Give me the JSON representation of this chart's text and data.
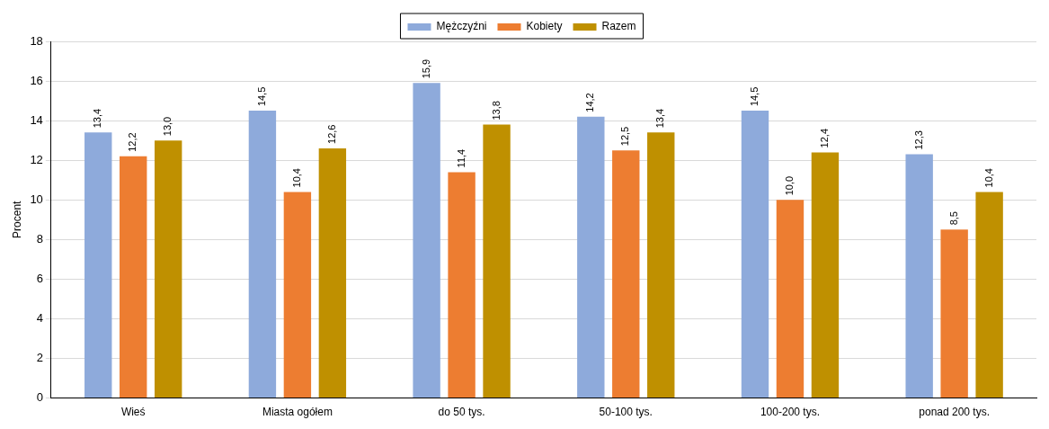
{
  "chart_data": {
    "type": "bar",
    "ylabel": "Procent",
    "categories": [
      "Wieś",
      "Miasta ogółem",
      "do 50 tys.",
      "50-100 tys.",
      "100-200 tys.",
      "ponad 200 tys."
    ],
    "series": [
      {
        "name": "Mężczyźni",
        "color": "#8eaadb",
        "values": [
          13.4,
          14.5,
          15.9,
          14.2,
          14.5,
          12.3
        ],
        "value_labels": [
          "13,4",
          "14,5",
          "15,9",
          "14,2",
          "14,5",
          "12,3"
        ]
      },
      {
        "name": "Kobiety",
        "color": "#ed7d31",
        "values": [
          12.2,
          10.4,
          11.4,
          12.5,
          10.0,
          8.5
        ],
        "value_labels": [
          "12,2",
          "10,4",
          "11,4",
          "12,5",
          "10,0",
          "8,5"
        ]
      },
      {
        "name": "Razem",
        "color": "#bf9000",
        "values": [
          13.0,
          12.6,
          13.8,
          13.4,
          12.4,
          10.4
        ],
        "value_labels": [
          "13,0",
          "12,6",
          "13,8",
          "13,4",
          "12,4",
          "10,4"
        ]
      }
    ],
    "ylim": [
      0,
      18
    ],
    "yticks": [
      0,
      2,
      4,
      6,
      8,
      10,
      12,
      14,
      16,
      18
    ],
    "grid": "y",
    "legend": "top"
  }
}
